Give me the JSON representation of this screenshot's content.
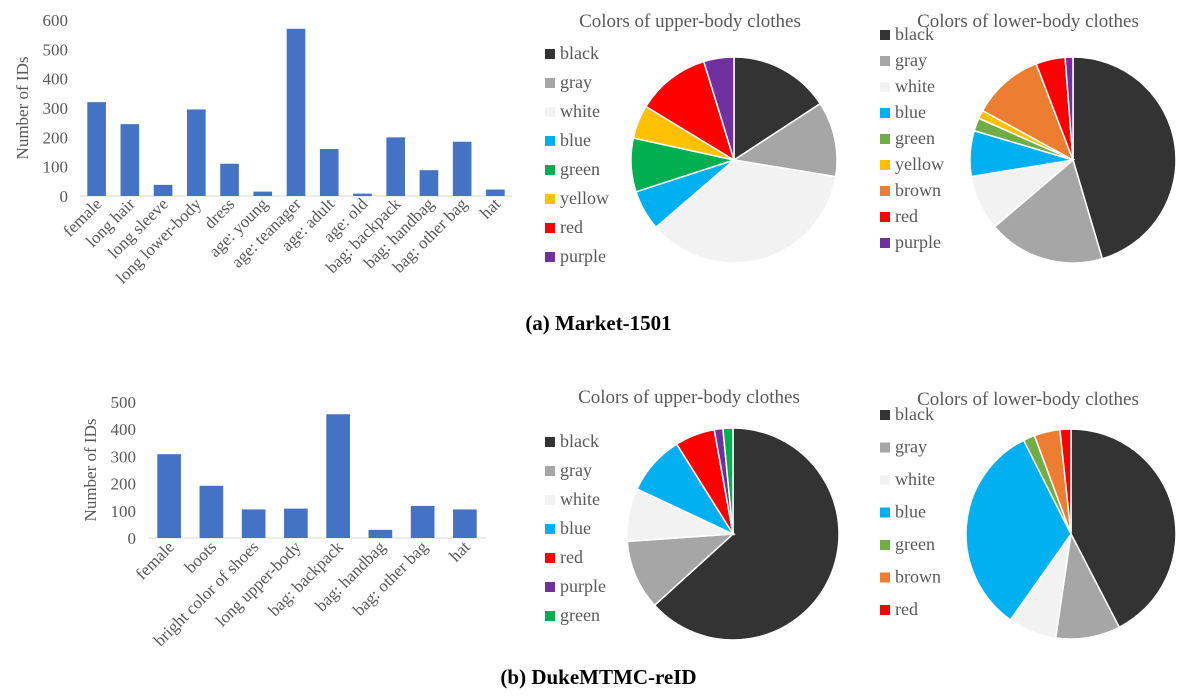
{
  "panels": [
    {
      "caption": "(a) Market-1501",
      "bar": {
        "type": "bar",
        "ylabel": "Number of IDs",
        "ylim": [
          0,
          600
        ],
        "yticks": [
          0,
          100,
          200,
          300,
          400,
          500,
          600
        ],
        "categories": [
          "female",
          "long hair",
          "long sleeve",
          "long lower-body",
          "dress",
          "age: young",
          "age: teanager",
          "age: adult",
          "age: old",
          "bag: backpack",
          "bag: handbag",
          "bag: other bag",
          "hat"
        ],
        "values": [
          320,
          245,
          38,
          295,
          110,
          15,
          570,
          160,
          8,
          200,
          88,
          185,
          22
        ]
      },
      "upper_pie": {
        "type": "pie",
        "title": "Colors of upper-body clothes",
        "labels": [
          "black",
          "gray",
          "white",
          "blue",
          "green",
          "yellow",
          "red",
          "purple"
        ],
        "values": [
          15,
          11.2,
          34.3,
          6,
          8,
          5,
          11,
          4.5
        ]
      },
      "lower_pie": {
        "type": "pie",
        "title": "Colors of lower-body clothes",
        "labels": [
          "black",
          "gray",
          "white",
          "blue",
          "green",
          "yellow",
          "brown",
          "red",
          "purple"
        ],
        "values": [
          44.5,
          18,
          8.5,
          7,
          2,
          1.3,
          11,
          4.5,
          1.2
        ]
      }
    },
    {
      "caption": "(b) DukeMTMC-reID",
      "bar": {
        "type": "bar",
        "ylabel": "Number of IDs",
        "ylim": [
          0,
          500
        ],
        "yticks": [
          0,
          100,
          200,
          300,
          400,
          500
        ],
        "categories": [
          "female",
          "boots",
          "bright color of shoes",
          "long upper-body",
          "bag: backpack",
          "bag: handbag",
          "bag: other bag",
          "hat"
        ],
        "values": [
          308,
          192,
          105,
          108,
          455,
          30,
          118,
          105
        ]
      },
      "upper_pie": {
        "type": "pie",
        "title": "Colors of upper-body clothes",
        "labels": [
          "black",
          "gray",
          "white",
          "blue",
          "red",
          "purple",
          "green"
        ],
        "values": [
          62.5,
          10.5,
          8,
          9,
          6,
          1.3,
          1.5
        ]
      },
      "lower_pie": {
        "type": "pie",
        "title": "Colors of lower-body clothes",
        "labels": [
          "black",
          "gray",
          "white",
          "blue",
          "green",
          "brown",
          "red"
        ],
        "values": [
          42.7,
          10,
          7.5,
          33,
          1.8,
          4,
          1.7
        ]
      }
    }
  ],
  "colors": {
    "bar": "#4472c4",
    "black": "#333333",
    "gray": "#a6a6a6",
    "white": "#f2f2f2",
    "blue": "#00b0f0",
    "green": "#00b050",
    "green_light": "#70ad47",
    "yellow": "#ffc000",
    "red": "#ff0000",
    "purple": "#7030a0",
    "brown": "#ed7d31",
    "axis": "#d9d9d9",
    "text": "#595959"
  }
}
